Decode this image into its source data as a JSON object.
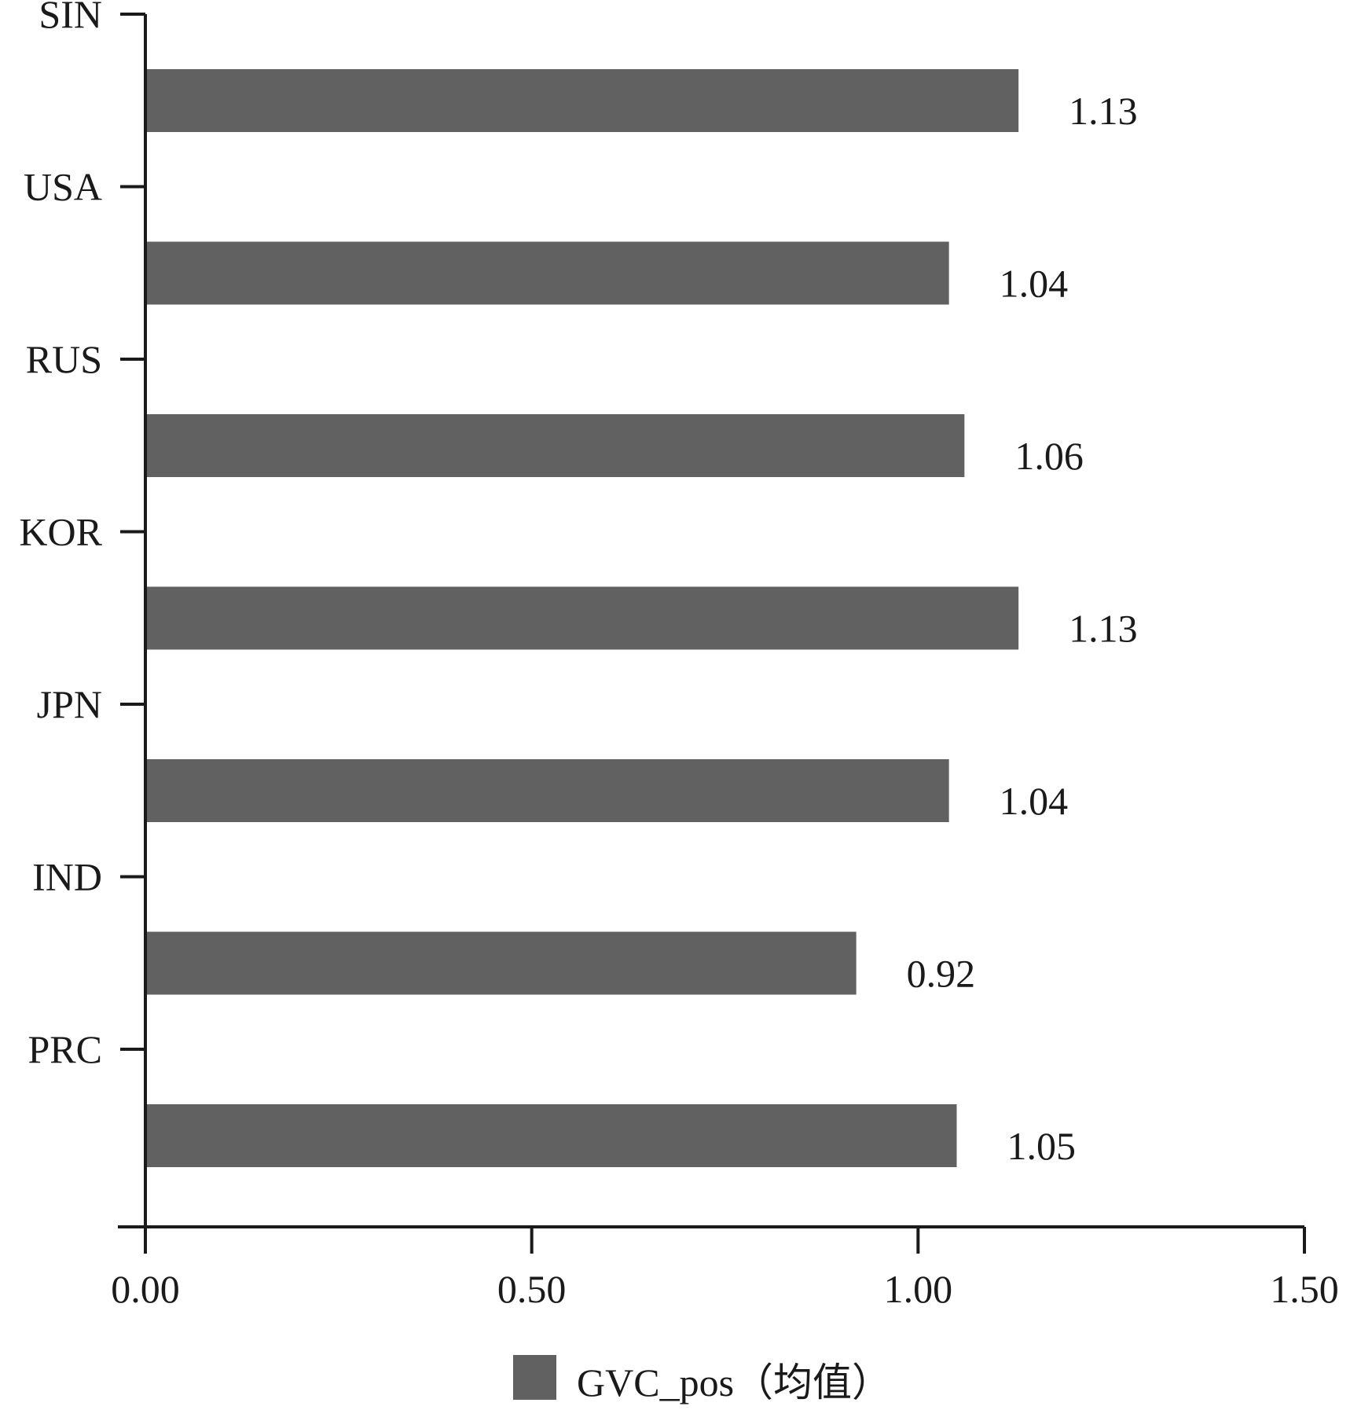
{
  "chart_data": {
    "type": "bar",
    "orientation": "horizontal",
    "categories": [
      "SIN",
      "USA",
      "RUS",
      "KOR",
      "JPN",
      "IND",
      "PRC"
    ],
    "series": [
      {
        "name": "GVC_pos（均值）",
        "values": [
          1.13,
          1.04,
          1.06,
          1.13,
          1.04,
          0.92,
          1.05
        ],
        "labels": [
          "1.13",
          "1.04",
          "1.06",
          "1.13",
          "1.04",
          "0.92",
          "1.05"
        ]
      }
    ],
    "xlim": [
      0,
      1.5
    ],
    "xticks": [
      0,
      0.5,
      1.0,
      1.5
    ],
    "xtick_labels": [
      "0.00",
      "0.50",
      "1.00",
      "1.50"
    ],
    "legend": {
      "label": "GVC_pos（均值）",
      "position": "bottom-center"
    },
    "grid": false,
    "bar_color": "#616161",
    "axis_color": "#1a1a1a"
  }
}
